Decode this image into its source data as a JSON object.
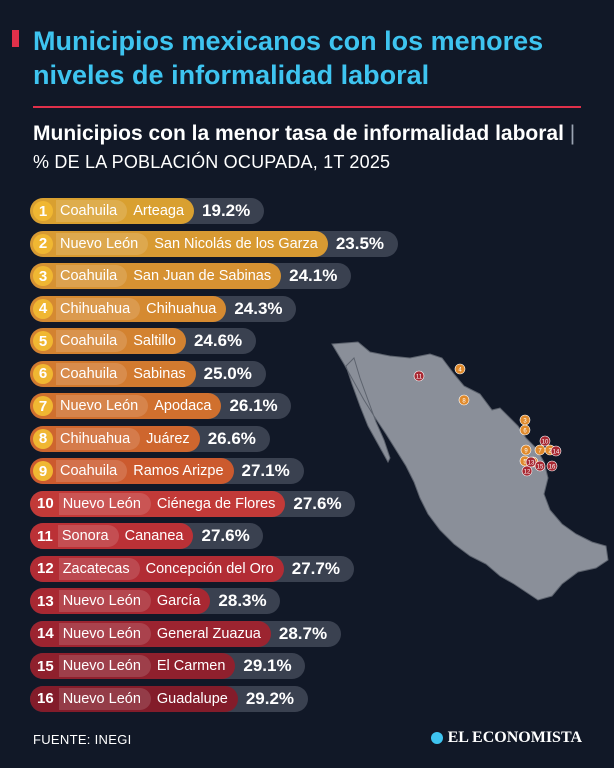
{
  "title": "Municipios mexicanos con los menores niveles de informalidad laboral",
  "subtitle_bold": "Municipios con la menor tasa de informalidad laboral",
  "subtitle_sep": "|",
  "subtitle_unit": "% DE LA POBLACIÓN OCUPADA, 1T 2025",
  "source": "FUENTE: INEGI",
  "brand": "EL ECONOMISTA",
  "colors": {
    "accent": "#3ec4f0",
    "rule": "#e0304a",
    "background": "#111827",
    "track": "#3a4150",
    "map_fill": "#8a8f99"
  },
  "chart_data": {
    "type": "bar",
    "orientation": "horizontal",
    "title": "Municipios con la menor tasa de informalidad laboral",
    "unit": "% DE LA POBLACIÓN OCUPADA, 1T 2025",
    "rows": [
      {
        "rank": "1",
        "state": "Coahuila",
        "municipality": "Arteaga",
        "label": "19.2%",
        "value": 19.2,
        "color": "#d9a030"
      },
      {
        "rank": "2",
        "state": "Nuevo León",
        "municipality": "San Nicolás de los Garza",
        "label": "23.5%",
        "value": 23.5,
        "color": "#d89a32"
      },
      {
        "rank": "3",
        "state": "Coahuila",
        "municipality": "San Juan de Sabinas",
        "label": "24.1%",
        "value": 24.1,
        "color": "#d69232"
      },
      {
        "rank": "4",
        "state": "Chihuahua",
        "municipality": "Chihuahua",
        "label": "24.3%",
        "value": 24.3,
        "color": "#d58a31"
      },
      {
        "rank": "5",
        "state": "Coahuila",
        "municipality": "Saltillo",
        "label": "24.6%",
        "value": 24.6,
        "color": "#d38230"
      },
      {
        "rank": "6",
        "state": "Coahuila",
        "municipality": "Sabinas",
        "label": "25.0%",
        "value": 25.0,
        "color": "#d27a2f"
      },
      {
        "rank": "7",
        "state": "Nuevo León",
        "municipality": "Apodaca",
        "label": "26.1%",
        "value": 26.1,
        "color": "#d0702e"
      },
      {
        "rank": "8",
        "state": "Chihuahua",
        "municipality": "Juárez",
        "label": "26.6%",
        "value": 26.6,
        "color": "#ce662e"
      },
      {
        "rank": "9",
        "state": "Coahuila",
        "municipality": "Ramos Arizpe",
        "label": "27.1%",
        "value": 27.1,
        "color": "#cc5a2e"
      },
      {
        "rank": "10",
        "state": "Nuevo León",
        "municipality": "Ciénega de Flores",
        "label": "27.6%",
        "value": 27.6,
        "color": "#c23a38"
      },
      {
        "rank": "11",
        "state": "Sonora",
        "municipality": "Cananea",
        "label": "27.6%",
        "value": 27.6,
        "color": "#bb3136"
      },
      {
        "rank": "12",
        "state": "Zacatecas",
        "municipality": "Concepción del Oro",
        "label": "27.7%",
        "value": 27.7,
        "color": "#b22c34"
      },
      {
        "rank": "13",
        "state": "Nuevo León",
        "municipality": "García",
        "label": "28.3%",
        "value": 28.3,
        "color": "#a82832"
      },
      {
        "rank": "14",
        "state": "Nuevo León",
        "municipality": "General Zuazua",
        "label": "28.7%",
        "value": 28.7,
        "color": "#9c2430"
      },
      {
        "rank": "15",
        "state": "Nuevo León",
        "municipality": "El Carmen",
        "label": "29.1%",
        "value": 29.1,
        "color": "#8f202d"
      },
      {
        "rank": "16",
        "state": "Nuevo León",
        "municipality": "Guadalupe",
        "label": "29.2%",
        "value": 29.2,
        "color": "#831c2a"
      }
    ]
  },
  "map": {
    "markers": [
      "1",
      "2",
      "3",
      "4",
      "5",
      "6",
      "7",
      "8",
      "9",
      "10",
      "11",
      "12",
      "13",
      "14",
      "15",
      "16"
    ]
  }
}
